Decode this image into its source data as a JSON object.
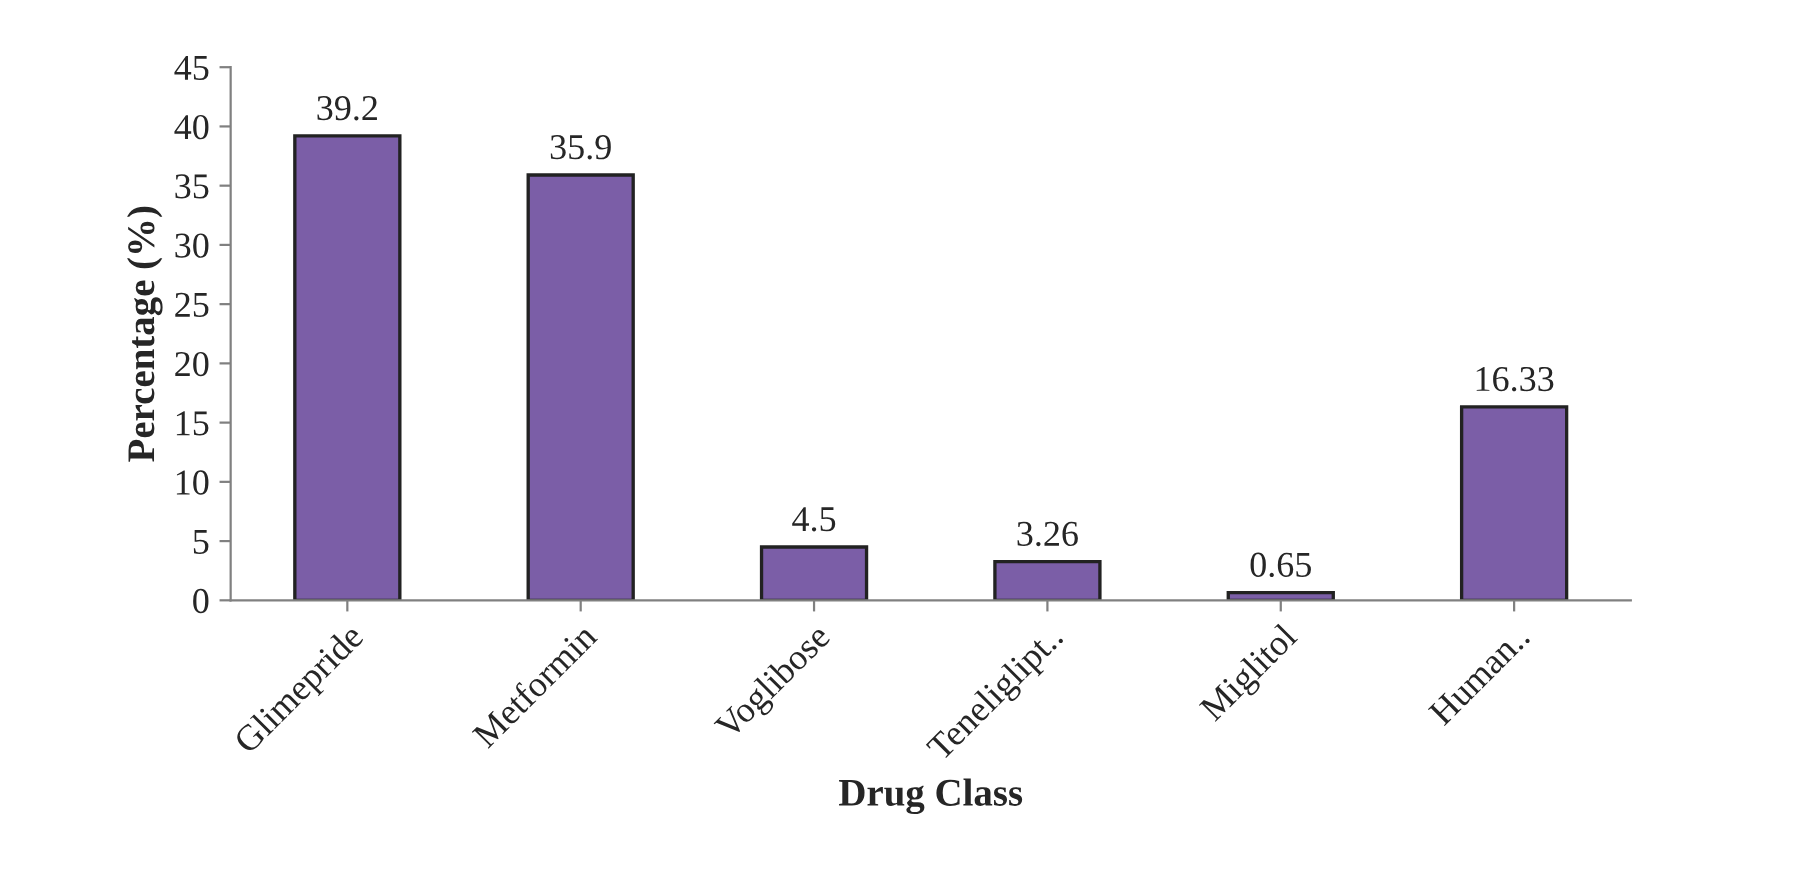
{
  "chart_data": {
    "type": "bar",
    "xlabel": "Drug Class",
    "ylabel": "Percentage (%)",
    "categories": [
      "Glimepride",
      "Metformin",
      "Voglibose",
      "Teneliglipt..",
      "Miglitol",
      "Human.."
    ],
    "values": [
      39.2,
      35.9,
      4.5,
      3.26,
      0.65,
      16.33
    ],
    "color": "#7b5ea7",
    "data_labels": true,
    "ylim": [
      0,
      45
    ],
    "yticks": [
      0,
      5,
      10,
      15,
      20,
      25,
      30,
      35,
      40,
      45
    ],
    "grid": false
  }
}
